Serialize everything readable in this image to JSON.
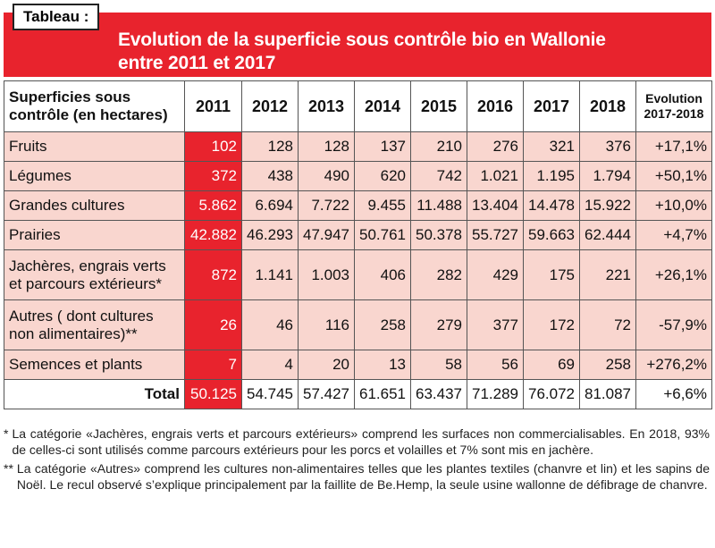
{
  "tag": "Tableau :",
  "title_line1": "Evolution de la superficie sous contrôle bio en Wallonie",
  "title_line2": "entre 2011 et 2017",
  "header": {
    "label_line1": "Superficies sous",
    "label_line2": "contrôle (en hectares)",
    "years": [
      "2011",
      "2012",
      "2013",
      "2014",
      "2015",
      "2016",
      "2017",
      "2018"
    ],
    "evo_line1": "Evolution",
    "evo_line2": "2017-2018"
  },
  "rows": [
    {
      "label1": "Fruits",
      "label2": "",
      "values": [
        "102",
        "128",
        "128",
        "137",
        "210",
        "276",
        "321",
        "376"
      ],
      "evo": "+17,1%"
    },
    {
      "label1": "Légumes",
      "label2": "",
      "values": [
        "372",
        "438",
        "490",
        "620",
        "742",
        "1.021",
        "1.195",
        "1.794"
      ],
      "evo": "+50,1%"
    },
    {
      "label1": "Grandes cultures",
      "label2": "",
      "values": [
        "5.862",
        "6.694",
        "7.722",
        "9.455",
        "11.488",
        "13.404",
        "14.478",
        "15.922"
      ],
      "evo": "+10,0%"
    },
    {
      "label1": "Prairies",
      "label2": "",
      "values": [
        "42.882",
        "46.293",
        "47.947",
        "50.761",
        "50.378",
        "55.727",
        "59.663",
        "62.444"
      ],
      "evo": "+4,7%"
    },
    {
      "label1": "Jachères, engrais verts",
      "label2": "et parcours extérieurs*",
      "values": [
        "872",
        "1.141",
        "1.003",
        "406",
        "282",
        "429",
        "175",
        "221"
      ],
      "evo": "+26,1%"
    },
    {
      "label1": "Autres ( dont cultures",
      "label2": "non alimentaires)**",
      "values": [
        "26",
        "46",
        "116",
        "258",
        "279",
        "377",
        "172",
        "72"
      ],
      "evo": "-57,9%"
    },
    {
      "label1": "Semences et plants",
      "label2": "",
      "values": [
        "7",
        "4",
        "20",
        "13",
        "58",
        "56",
        "69",
        "258"
      ],
      "evo": "+276,2%"
    }
  ],
  "total": {
    "label": "Total",
    "values": [
      "50.125",
      "54.745",
      "57.427",
      "61.651",
      "63.437",
      "71.289",
      "76.072",
      "81.087"
    ],
    "evo": "+6,6%"
  },
  "notes": [
    {
      "mark": "*",
      "text": "La catégorie «Jachères, engrais verts et parcours extérieurs» comprend les surfaces non commercialisables. En 2018, 93% de celles-ci sont utilisés comme parcours extérieurs pour les porcs et volailles et 7% sont mis en jachère."
    },
    {
      "mark": "**",
      "text": "La catégorie «Autres» comprend les cultures non-alimentaires telles que les plantes textiles (chanvre et lin) et les sapins de Noël. Le recul observé s’explique principalement par la faillite de Be.Hemp, la seule usine wallonne de défibrage de chanvre."
    }
  ],
  "colors": {
    "accent_red": "#e8232d",
    "row_pink": "#f9d6cf"
  }
}
